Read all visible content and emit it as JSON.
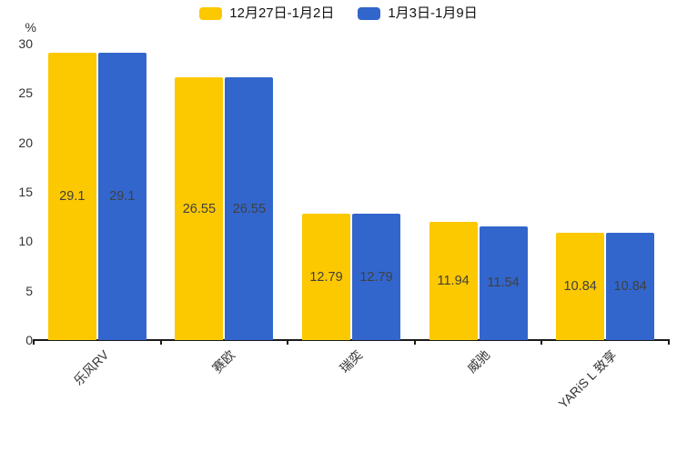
{
  "chart_data": {
    "type": "bar",
    "title": "",
    "categories": [
      "乐风RV",
      "赛欧",
      "瑞奕",
      "威驰",
      "YARiS L 致享"
    ],
    "series": [
      {
        "name": "12月27日-1月2日",
        "color": "#FCC800",
        "values": [
          29.1,
          26.55,
          12.79,
          11.94,
          10.84
        ]
      },
      {
        "name": "1月3日-1月9日",
        "color": "#3266CC",
        "values": [
          29.1,
          26.55,
          12.79,
          11.54,
          10.84
        ]
      }
    ],
    "xlabel": "",
    "ylabel": "%",
    "ylim": [
      0,
      30
    ],
    "yticks": [
      0,
      5,
      10,
      15,
      20,
      25,
      30
    ],
    "grid": false,
    "legend_position": "top",
    "value_labels": true,
    "value_label_color": "#404040",
    "axis_color": "#1a1a1a",
    "tick_label_color": "#333333"
  }
}
